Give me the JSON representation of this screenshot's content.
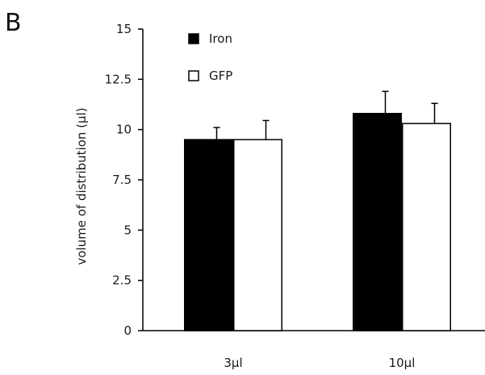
{
  "panel_label": "B",
  "chart_data": {
    "type": "bar",
    "categories": [
      "3µl",
      "10µl"
    ],
    "series": [
      {
        "name": "Iron",
        "values": [
          9.5,
          10.8
        ],
        "errors": [
          0.6,
          1.1
        ],
        "color": "#000000"
      },
      {
        "name": "GFP",
        "values": [
          9.5,
          10.3
        ],
        "errors": [
          0.95,
          1.0
        ],
        "color": "#ffffff"
      }
    ],
    "title": "",
    "xlabel": "",
    "ylabel": "volume of distribution (µl)",
    "ylim": [
      0,
      15
    ],
    "yticks": [
      0,
      2.5,
      5,
      7.5,
      10,
      12.5,
      15
    ],
    "ytick_labels": [
      "0",
      "2.5",
      "5",
      "7.5",
      "10",
      "12.5",
      "15"
    ],
    "grid": false,
    "legend_position": "top-left",
    "error_bars": "upper"
  }
}
